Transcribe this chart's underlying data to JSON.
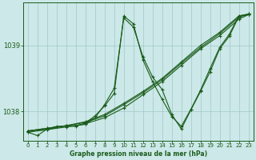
{
  "title": "Graphe pression niveau de la mer (hPa)",
  "background_color": "#cce8e8",
  "grid_color": "#a0c8c8",
  "line_color": "#1a5c1a",
  "xlim": [
    -0.5,
    23.5
  ],
  "ylim": [
    1037.55,
    1039.65
  ],
  "xticks": [
    0,
    1,
    2,
    3,
    4,
    5,
    6,
    7,
    8,
    9,
    10,
    11,
    12,
    13,
    14,
    15,
    16,
    17,
    18,
    19,
    20,
    21,
    22,
    23
  ],
  "yticks": [
    1038.0,
    1039.0
  ],
  "series": [
    {
      "x": [
        0,
        2,
        4,
        6,
        8,
        10,
        12,
        14,
        16,
        18,
        20,
        22,
        23
      ],
      "y": [
        1037.68,
        1037.72,
        1037.76,
        1037.81,
        1037.9,
        1038.05,
        1038.25,
        1038.45,
        1038.7,
        1038.95,
        1039.15,
        1039.4,
        1039.47
      ],
      "marker": true,
      "ms": 3.0
    },
    {
      "x": [
        0,
        2,
        4,
        6,
        8,
        10,
        12,
        14,
        16,
        18,
        20,
        22,
        23
      ],
      "y": [
        1037.7,
        1037.74,
        1037.78,
        1037.83,
        1037.93,
        1038.1,
        1038.28,
        1038.48,
        1038.73,
        1038.97,
        1039.18,
        1039.43,
        1039.48
      ],
      "marker": true,
      "ms": 3.0
    },
    {
      "x": [
        0,
        2,
        4,
        6,
        8,
        10,
        12,
        14,
        16,
        18,
        20,
        22,
        23
      ],
      "y": [
        1037.7,
        1037.74,
        1037.78,
        1037.84,
        1037.95,
        1038.12,
        1038.3,
        1038.5,
        1038.75,
        1039.0,
        1039.2,
        1039.45,
        1039.48
      ],
      "marker": true,
      "ms": 3.0
    },
    {
      "x": [
        0,
        1,
        2,
        3,
        4,
        5,
        6,
        7,
        8,
        9,
        10,
        11,
        12,
        13,
        14,
        15,
        16,
        17,
        18,
        19,
        20,
        21,
        22,
        23
      ],
      "y": [
        1037.68,
        1037.63,
        1037.73,
        1037.77,
        1037.77,
        1037.77,
        1037.82,
        1037.93,
        1038.08,
        1038.27,
        1039.45,
        1039.33,
        1038.78,
        1038.45,
        1038.18,
        1037.92,
        1037.77,
        1038.03,
        1038.32,
        1038.65,
        1038.97,
        1039.17,
        1039.45,
        1039.47
      ],
      "marker": true,
      "ms": 3.5
    },
    {
      "x": [
        0,
        2,
        4,
        5,
        6,
        7,
        8,
        9,
        10,
        11,
        12,
        13,
        14,
        15,
        16,
        17,
        18,
        19,
        20,
        21,
        22,
        23
      ],
      "y": [
        1037.7,
        1037.72,
        1037.78,
        1037.78,
        1037.8,
        1037.9,
        1038.1,
        1038.35,
        1039.42,
        1039.28,
        1038.83,
        1038.52,
        1038.33,
        1037.95,
        1037.73,
        1038.02,
        1038.3,
        1038.6,
        1038.95,
        1039.14,
        1039.44,
        1039.47
      ],
      "marker": true,
      "ms": 3.5
    }
  ]
}
